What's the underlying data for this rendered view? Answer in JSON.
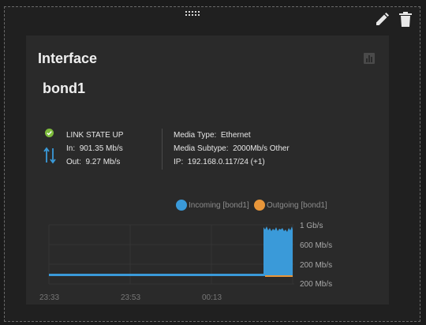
{
  "widget": {
    "title": "Interface",
    "interface_name": "bond1",
    "colors": {
      "incoming": "#3a9ad9",
      "outgoing": "#e8963a",
      "status_ok": "#7dbb3c"
    }
  },
  "status": {
    "link_state": "LINK STATE UP",
    "in_label": "In:",
    "in_value": "901.35 Mb/s",
    "out_label": "Out:",
    "out_value": "9.27 Mb/s"
  },
  "media": {
    "type_label": "Media Type:",
    "type_value": "Ethernet",
    "subtype_label": "Media Subtype:",
    "subtype_value": "2000Mb/s Other",
    "ip_label": "IP:",
    "ip_value": "192.168.0.117/24 (+1)"
  },
  "chart_data": {
    "type": "area",
    "series": [
      {
        "name": "Incoming [bond1]",
        "color": "#3a9ad9"
      },
      {
        "name": "Outgoing [bond1]",
        "color": "#e8963a"
      }
    ],
    "y_tick_labels": [
      "1 Gb/s",
      "600 Mb/s",
      "200 Mb/s",
      "200 Mb/s"
    ],
    "x_tick_labels": [
      "23:33",
      "23:53",
      "00:13"
    ],
    "incoming_baseline_mbps": 0,
    "incoming_burst_mbps": 901.35,
    "outgoing_baseline_mbps": 0,
    "outgoing_burst_mbps": 9.27
  },
  "icons": {
    "drag": "drag-handle-icon",
    "edit": "pencil-icon",
    "delete": "trash-icon",
    "chart_toggle": "bar-chart-icon",
    "status": "check-circle-icon",
    "traffic": "arrows-up-down-icon"
  }
}
